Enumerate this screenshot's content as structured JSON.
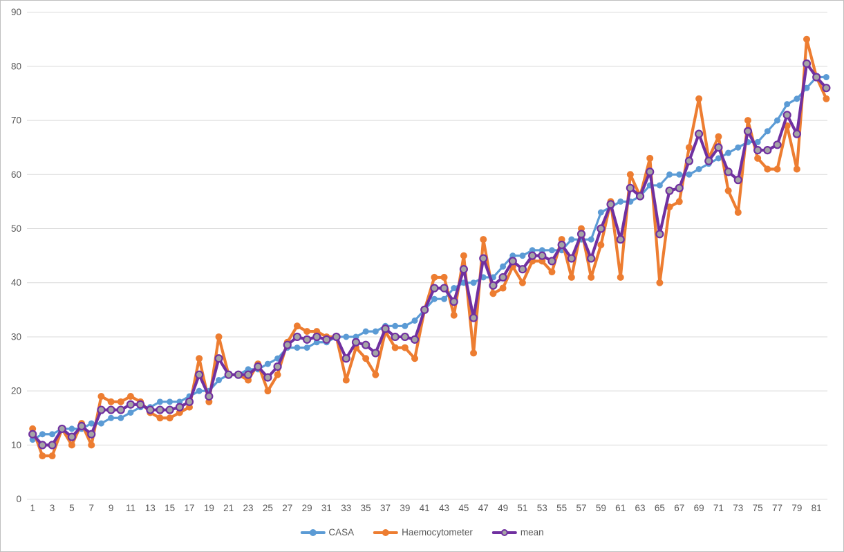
{
  "chart_data": {
    "type": "line",
    "title": "",
    "xlabel": "",
    "ylabel": "",
    "x_count": 82,
    "x_tick_step_note": "odd sample numbers labeled",
    "x_tick_labels": [
      "1",
      "3",
      "5",
      "7",
      "9",
      "11",
      "13",
      "15",
      "17",
      "19",
      "21",
      "23",
      "25",
      "27",
      "29",
      "31",
      "33",
      "35",
      "37",
      "39",
      "41",
      "43",
      "45",
      "47",
      "49",
      "51",
      "53",
      "55",
      "57",
      "59",
      "61",
      "63",
      "65",
      "67",
      "69",
      "71",
      "73",
      "75",
      "77",
      "79",
      "81"
    ],
    "ylim": [
      0,
      90
    ],
    "y_ticks": [
      0,
      10,
      20,
      30,
      40,
      50,
      60,
      70,
      80,
      90
    ],
    "grid": true,
    "legend_position": "bottom-center",
    "colors": {
      "grid": "#d9d9d9",
      "tick_text": "#595959",
      "background": "#ffffff",
      "frame_border": "#bfbfbf"
    },
    "series": [
      {
        "name": "CASA",
        "color": "#5b9bd5",
        "marker": "circle",
        "marker_fill": "#5b9bd5",
        "marker_stroke": "#5b9bd5",
        "line_width": 3.2,
        "marker_radius": 4,
        "values": [
          11,
          12,
          12,
          13,
          13,
          13,
          14,
          14,
          15,
          15,
          16,
          17,
          17,
          18,
          18,
          18,
          19,
          20,
          20,
          22,
          23,
          23,
          24,
          24,
          25,
          26,
          28,
          28,
          28,
          29,
          29,
          30,
          30,
          30,
          31,
          31,
          32,
          32,
          32,
          33,
          35,
          37,
          37,
          39,
          40,
          40,
          41,
          41,
          43,
          45,
          45,
          46,
          46,
          46,
          46,
          48,
          48,
          48,
          53,
          54,
          55,
          55,
          56,
          58,
          58,
          60,
          60,
          60,
          61,
          62,
          63,
          64,
          65,
          66,
          66,
          68,
          70,
          73,
          74,
          76,
          78,
          78
        ]
      },
      {
        "name": "Haemocytometer",
        "color": "#ed7d31",
        "marker": "circle",
        "marker_fill": "#ed7d31",
        "marker_stroke": "#ed7d31",
        "line_width": 4.2,
        "marker_radius": 4.5,
        "values": [
          13,
          8,
          8,
          13,
          10,
          14,
          10,
          19,
          18,
          18,
          19,
          18,
          16,
          15,
          15,
          16,
          17,
          26,
          18,
          30,
          23,
          23,
          22,
          25,
          20,
          23,
          29,
          32,
          31,
          31,
          30,
          30,
          22,
          28,
          26,
          23,
          31,
          28,
          28,
          26,
          35,
          41,
          41,
          34,
          45,
          27,
          48,
          38,
          39,
          43,
          40,
          44,
          44,
          42,
          48,
          41,
          50,
          41,
          47,
          55,
          41,
          60,
          56,
          63,
          40,
          54,
          55,
          65,
          74,
          63,
          67,
          57,
          53,
          70,
          63,
          61,
          61,
          69,
          61,
          85,
          78,
          74
        ]
      },
      {
        "name": "mean",
        "color": "#7030a0",
        "marker": "circle",
        "marker_fill": "#a5a5a5",
        "marker_stroke": "#7030a0",
        "line_width": 4.2,
        "marker_radius": 5,
        "values": [
          12,
          10,
          10,
          13,
          11.5,
          13.5,
          12,
          16.5,
          16.5,
          16.5,
          17.5,
          17.5,
          16.5,
          16.5,
          16.5,
          17,
          18,
          23,
          19,
          26,
          23,
          23,
          23,
          24.5,
          22.5,
          24.5,
          28.5,
          30,
          29.5,
          30,
          29.5,
          30,
          26,
          29,
          28.5,
          27,
          31.5,
          30,
          30,
          29.5,
          35,
          39,
          39,
          36.5,
          42.5,
          33.5,
          44.5,
          39.5,
          41,
          44,
          42.5,
          45,
          45,
          44,
          47,
          44.5,
          49,
          44.5,
          50,
          54.5,
          48,
          57.5,
          56,
          60.5,
          49,
          57,
          57.5,
          62.5,
          67.5,
          62.5,
          65,
          60.5,
          59,
          68,
          64.5,
          64.5,
          65.5,
          71,
          67.5,
          80.5,
          78,
          76
        ]
      }
    ],
    "layout": {
      "plot_x_first_point": 46.2,
      "plot_x_point_spacing": 14.175,
      "plot_y_zero": 720.6,
      "plot_y_pixels_per_unit": 7.8215,
      "gridline_x_start": 38,
      "gridline_x_end": 1196,
      "x_tick_label_y": 738,
      "y_tick_label_x": 30
    }
  }
}
